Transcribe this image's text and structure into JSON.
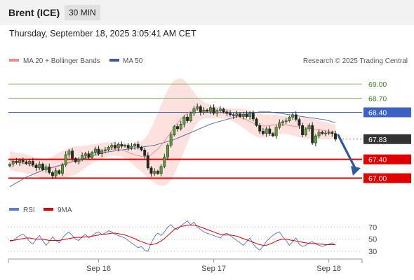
{
  "header": {
    "instrument": "Brent (ICE)",
    "timeframe": "30 MIN",
    "timestamp": "Thursday, September 18, 2025 3:05:41 AM CET"
  },
  "legend": {
    "ma20_label": "MA 20 + Bollinger Bands",
    "ma50_label": "MA 50",
    "ma20_color": "#f28b82",
    "ma50_color": "#3c5a9a",
    "source": "Research © 2025 Trading Central"
  },
  "rsi_legend": {
    "rsi_label": "RSI",
    "ma_label": "9MA",
    "rsi_color": "#5b7fd6",
    "ma_color": "#e00000"
  },
  "chart_data": {
    "type": "candlestick",
    "ylim": [
      66.8,
      69.3
    ],
    "x_ticks": [
      {
        "label": "Sep 16",
        "index": 27
      },
      {
        "label": "Sep 17",
        "index": 62
      },
      {
        "label": "Sep 18",
        "index": 97
      }
    ],
    "levels": [
      {
        "value": 69.0,
        "label": "69.00",
        "kind": "resistance-thin"
      },
      {
        "value": 68.7,
        "label": "68.70",
        "kind": "resistance-thin"
      },
      {
        "value": 68.4,
        "label": "68.40",
        "kind": "pivot"
      },
      {
        "value": 67.83,
        "label": "67.83",
        "kind": "last"
      },
      {
        "value": 67.4,
        "label": "67.40",
        "kind": "support"
      },
      {
        "value": 67.0,
        "label": "67.00",
        "kind": "support"
      }
    ],
    "close": [
      67.3,
      67.36,
      67.33,
      67.38,
      67.35,
      67.31,
      67.36,
      67.28,
      67.22,
      67.3,
      67.18,
      67.24,
      67.12,
      67.05,
      67.16,
      67.1,
      67.28,
      67.5,
      67.58,
      67.42,
      67.35,
      67.4,
      67.48,
      67.52,
      67.44,
      67.55,
      67.62,
      67.52,
      67.58,
      67.6,
      67.66,
      67.7,
      67.64,
      67.72,
      67.68,
      67.7,
      67.64,
      67.68,
      67.72,
      67.66,
      67.6,
      67.48,
      67.22,
      67.1,
      67.15,
      67.1,
      67.25,
      67.45,
      67.7,
      67.92,
      68.1,
      68.05,
      68.15,
      68.3,
      68.22,
      68.38,
      68.48,
      68.52,
      68.4,
      68.45,
      68.42,
      68.5,
      68.38,
      68.44,
      68.47,
      68.41,
      68.38,
      68.35,
      68.33,
      68.37,
      68.31,
      68.36,
      68.31,
      68.38,
      68.26,
      68.12,
      68.0,
      67.95,
      68.05,
      67.95,
      67.9,
      68.08,
      68.18,
      68.2,
      68.22,
      68.3,
      68.35,
      68.25,
      68.12,
      67.92,
      68.05,
      68.12,
      67.75,
      67.9,
      67.98,
      67.95,
      67.96,
      67.97,
      67.95,
      67.83
    ],
    "ma20": [
      67.38,
      67.36,
      67.34,
      67.33,
      67.32,
      67.3,
      67.28,
      67.26,
      67.24,
      67.22,
      67.2,
      67.2,
      67.21,
      67.22,
      67.24,
      67.26,
      67.28,
      67.31,
      67.34,
      67.36,
      67.38,
      67.4,
      67.43,
      67.46,
      67.49,
      67.52,
      67.54,
      67.56,
      67.58,
      67.6,
      67.61,
      67.62,
      67.62,
      67.61,
      67.6,
      67.58,
      67.55,
      67.52,
      67.5,
      67.48,
      67.46,
      67.46,
      67.47,
      67.5,
      67.56,
      67.62,
      67.7,
      67.78,
      67.88,
      67.98,
      68.08,
      68.18,
      68.26,
      68.33,
      68.38,
      68.42,
      68.44,
      68.45,
      68.45,
      68.44,
      68.43,
      68.42,
      68.41,
      68.4,
      68.39,
      68.38,
      68.37,
      68.36,
      68.34,
      68.32,
      68.3,
      68.27,
      68.24,
      68.2,
      68.17,
      68.14,
      68.12,
      68.11,
      68.11,
      68.12,
      68.13,
      68.14,
      68.14,
      68.14,
      68.13,
      68.12,
      68.11,
      68.1,
      68.09,
      68.08,
      68.07,
      68.06,
      68.05,
      68.04,
      68.03,
      68.02,
      68.01,
      68.0,
      67.99,
      67.98
    ],
    "ma50": [
      66.82,
      66.86,
      66.9,
      66.94,
      66.98,
      67.02,
      67.05,
      67.08,
      67.11,
      67.14,
      67.17,
      67.19,
      67.21,
      67.23,
      67.25,
      67.27,
      67.29,
      67.31,
      67.33,
      67.35,
      67.37,
      67.39,
      67.41,
      67.43,
      67.45,
      67.47,
      67.49,
      67.51,
      67.53,
      67.55,
      67.56,
      67.57,
      67.58,
      67.59,
      67.6,
      67.61,
      67.62,
      67.63,
      67.64,
      67.65,
      67.66,
      67.67,
      67.68,
      67.69,
      67.7,
      67.72,
      67.74,
      67.76,
      67.78,
      67.8,
      67.82,
      67.85,
      67.88,
      67.91,
      67.94,
      67.97,
      68.0,
      68.03,
      68.06,
      68.09,
      68.12,
      68.15,
      68.17,
      68.19,
      68.21,
      68.23,
      68.25,
      68.27,
      68.29,
      68.31,
      68.33,
      68.35,
      68.37,
      68.38,
      68.39,
      68.4,
      68.41,
      68.41,
      68.41,
      68.41,
      68.4,
      68.39,
      68.38,
      68.37,
      68.36,
      68.35,
      68.34,
      68.33,
      68.32,
      68.31,
      68.3,
      68.29,
      68.28,
      68.27,
      68.26,
      68.25,
      68.24,
      68.22,
      68.2,
      68.18
    ],
    "bb_width": [
      0.2,
      0.2,
      0.2,
      0.2,
      0.2,
      0.2,
      0.2,
      0.2,
      0.2,
      0.2,
      0.2,
      0.2,
      0.22,
      0.24,
      0.26,
      0.28,
      0.3,
      0.3,
      0.3,
      0.3,
      0.3,
      0.28,
      0.26,
      0.24,
      0.22,
      0.2,
      0.19,
      0.18,
      0.17,
      0.16,
      0.15,
      0.14,
      0.14,
      0.14,
      0.14,
      0.15,
      0.17,
      0.2,
      0.24,
      0.28,
      0.32,
      0.38,
      0.46,
      0.56,
      0.66,
      0.76,
      0.86,
      0.94,
      1.0,
      1.02,
      1.0,
      0.94,
      0.86,
      0.76,
      0.64,
      0.5,
      0.38,
      0.28,
      0.22,
      0.18,
      0.16,
      0.15,
      0.14,
      0.13,
      0.12,
      0.12,
      0.12,
      0.13,
      0.14,
      0.16,
      0.18,
      0.2,
      0.22,
      0.24,
      0.25,
      0.26,
      0.26,
      0.25,
      0.24,
      0.23,
      0.22,
      0.21,
      0.2,
      0.19,
      0.19,
      0.19,
      0.2,
      0.21,
      0.22,
      0.23,
      0.23,
      0.23,
      0.22,
      0.21,
      0.2,
      0.19,
      0.18,
      0.17,
      0.16,
      0.15
    ],
    "rsi": {
      "ticks": [
        70,
        50,
        30
      ],
      "ylim": [
        22,
        82
      ],
      "values": [
        46,
        48,
        52,
        56,
        58,
        54,
        46,
        42,
        50,
        56,
        48,
        40,
        46,
        54,
        48,
        44,
        52,
        58,
        62,
        56,
        50,
        48,
        54,
        58,
        52,
        56,
        60,
        62,
        58,
        60,
        64,
        62,
        58,
        56,
        54,
        52,
        48,
        44,
        40,
        36,
        38,
        32,
        30,
        44,
        54,
        60,
        56,
        62,
        70,
        74,
        68,
        66,
        72,
        76,
        80,
        74,
        78,
        70,
        66,
        62,
        60,
        58,
        56,
        54,
        52,
        58,
        60,
        56,
        52,
        48,
        44,
        40,
        46,
        52,
        42,
        36,
        32,
        38,
        46,
        52,
        56,
        60,
        62,
        54,
        48,
        40,
        46,
        52,
        42,
        38,
        40,
        44,
        46,
        42,
        40,
        38,
        40,
        42,
        44,
        40
      ],
      "ma": [
        48,
        48,
        49,
        50,
        51,
        52,
        52,
        51,
        50,
        50,
        50,
        49,
        48,
        48,
        48,
        48,
        49,
        50,
        51,
        52,
        53,
        53,
        53,
        54,
        54,
        55,
        56,
        57,
        58,
        58,
        59,
        60,
        60,
        59,
        58,
        57,
        55,
        53,
        51,
        48,
        46,
        44,
        42,
        41,
        42,
        44,
        47,
        51,
        56,
        61,
        66,
        69,
        71,
        72,
        73,
        73,
        73,
        72,
        70,
        68,
        66,
        64,
        62,
        60,
        58,
        57,
        57,
        57,
        56,
        55,
        53,
        51,
        49,
        47,
        45,
        43,
        41,
        40,
        40,
        42,
        44,
        47,
        49,
        50,
        50,
        49,
        48,
        47,
        46,
        45,
        44,
        43,
        43,
        43,
        42,
        42,
        41,
        41,
        41,
        41
      ]
    }
  }
}
